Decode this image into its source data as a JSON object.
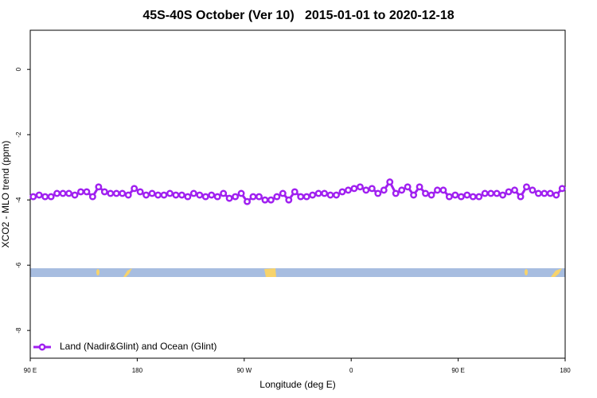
{
  "chart_data": {
    "type": "line",
    "title": "45S-40S October (Ver 10)   2015-01-01 to 2020-12-18",
    "xlabel": "Longitude (deg E)",
    "ylabel": "XCO2 - MLO trend (ppm)",
    "xlim": [
      90,
      540
    ],
    "ylim": [
      -8.85,
      1.2
    ],
    "xticks": [
      {
        "value": 90,
        "label": "90 E"
      },
      {
        "value": 180,
        "label": "180"
      },
      {
        "value": 270,
        "label": "90 W"
      },
      {
        "value": 360,
        "label": "0"
      },
      {
        "value": 450,
        "label": "90 E"
      },
      {
        "value": 540,
        "label": "180"
      }
    ],
    "yticks": [
      0,
      -2,
      -4,
      -6,
      -8
    ],
    "legend": "bottom-left",
    "x": [
      92.5,
      97.5,
      102.5,
      107.5,
      112.5,
      117.5,
      122.5,
      127.5,
      132.5,
      137.5,
      142.5,
      147.5,
      152.5,
      157.5,
      162.5,
      167.5,
      172.5,
      177.5,
      182.5,
      187.5,
      192.5,
      197.5,
      202.5,
      207.5,
      212.5,
      217.5,
      222.5,
      227.5,
      232.5,
      237.5,
      242.5,
      247.5,
      252.5,
      257.5,
      262.5,
      267.5,
      272.5,
      277.5,
      282.5,
      287.5,
      292.5,
      297.5,
      302.5,
      307.5,
      312.5,
      317.5,
      322.5,
      327.5,
      332.5,
      337.5,
      342.5,
      347.5,
      352.5,
      357.5,
      362.5,
      367.5,
      372.5,
      377.5,
      382.5,
      387.5,
      392.5,
      397.5,
      402.5,
      407.5,
      412.5,
      417.5,
      422.5,
      427.5,
      432.5,
      437.5,
      442.5,
      447.5,
      452.5,
      457.5,
      462.5,
      467.5,
      472.5,
      477.5,
      482.5,
      487.5,
      492.5,
      497.5,
      502.5,
      507.5,
      512.5,
      517.5,
      522.5,
      527.5,
      532.5,
      537.5
    ],
    "series": [
      {
        "name": "Land (Nadir&Glint) and Ocean (Glint)",
        "color": "#a020f0",
        "values": [
          -3.9,
          -3.85,
          -3.9,
          -3.9,
          -3.8,
          -3.8,
          -3.8,
          -3.85,
          -3.75,
          -3.75,
          -3.9,
          -3.6,
          -3.75,
          -3.8,
          -3.8,
          -3.8,
          -3.85,
          -3.65,
          -3.75,
          -3.85,
          -3.8,
          -3.85,
          -3.85,
          -3.8,
          -3.85,
          -3.85,
          -3.9,
          -3.8,
          -3.85,
          -3.9,
          -3.85,
          -3.9,
          -3.8,
          -3.95,
          -3.9,
          -3.8,
          -4.05,
          -3.9,
          -3.9,
          -4.0,
          -4.0,
          -3.9,
          -3.8,
          -4.0,
          -3.75,
          -3.9,
          -3.9,
          -3.85,
          -3.8,
          -3.8,
          -3.85,
          -3.85,
          -3.75,
          -3.7,
          -3.65,
          -3.6,
          -3.7,
          -3.65,
          -3.8,
          -3.7,
          -3.45,
          -3.8,
          -3.7,
          -3.6,
          -3.85,
          -3.6,
          -3.8,
          -3.85,
          -3.7,
          -3.7,
          -3.9,
          -3.85,
          -3.9,
          -3.85,
          -3.9,
          -3.9,
          -3.8,
          -3.8,
          -3.8,
          -3.85,
          -3.75,
          -3.7,
          -3.9,
          -3.6,
          -3.7,
          -3.8,
          -3.8,
          -3.8,
          -3.85,
          -3.65
        ]
      }
    ]
  }
}
